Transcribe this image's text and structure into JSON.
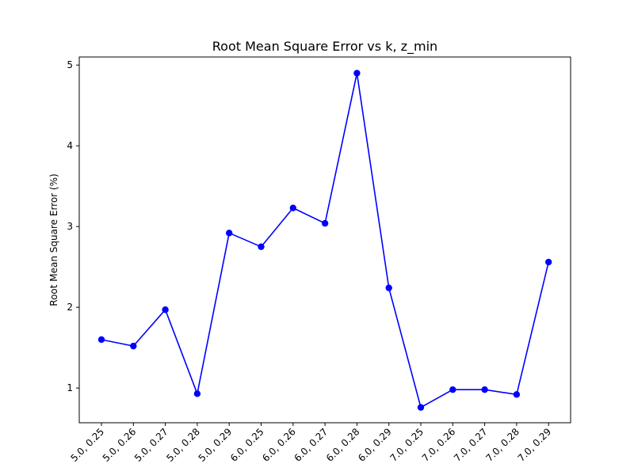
{
  "chart_data": {
    "type": "line",
    "title": "Root Mean Square Error vs k, z_min",
    "xlabel": "",
    "ylabel": "Root Mean Square Error (%)",
    "categories": [
      "5.0, 0.25",
      "5.0, 0.26",
      "5.0, 0.27",
      "5.0, 0.28",
      "5.0, 0.29",
      "6.0, 0.25",
      "6.0, 0.26",
      "6.0, 0.27",
      "6.0, 0.28",
      "6.0, 0.29",
      "7.0, 0.25",
      "7.0, 0.26",
      "7.0, 0.27",
      "7.0, 0.28",
      "7.0, 0.29"
    ],
    "series": [
      {
        "values": [
          1.6,
          1.52,
          1.97,
          0.93,
          2.92,
          2.75,
          3.23,
          3.04,
          4.9,
          2.24,
          0.76,
          0.98,
          0.98,
          0.92,
          2.56
        ],
        "color": "#0000ff",
        "marker": "circle"
      }
    ],
    "ylim": [
      0.57,
      5.1
    ],
    "yticks": [
      1,
      2,
      3,
      4,
      5
    ],
    "grid": false,
    "legend": "none"
  }
}
